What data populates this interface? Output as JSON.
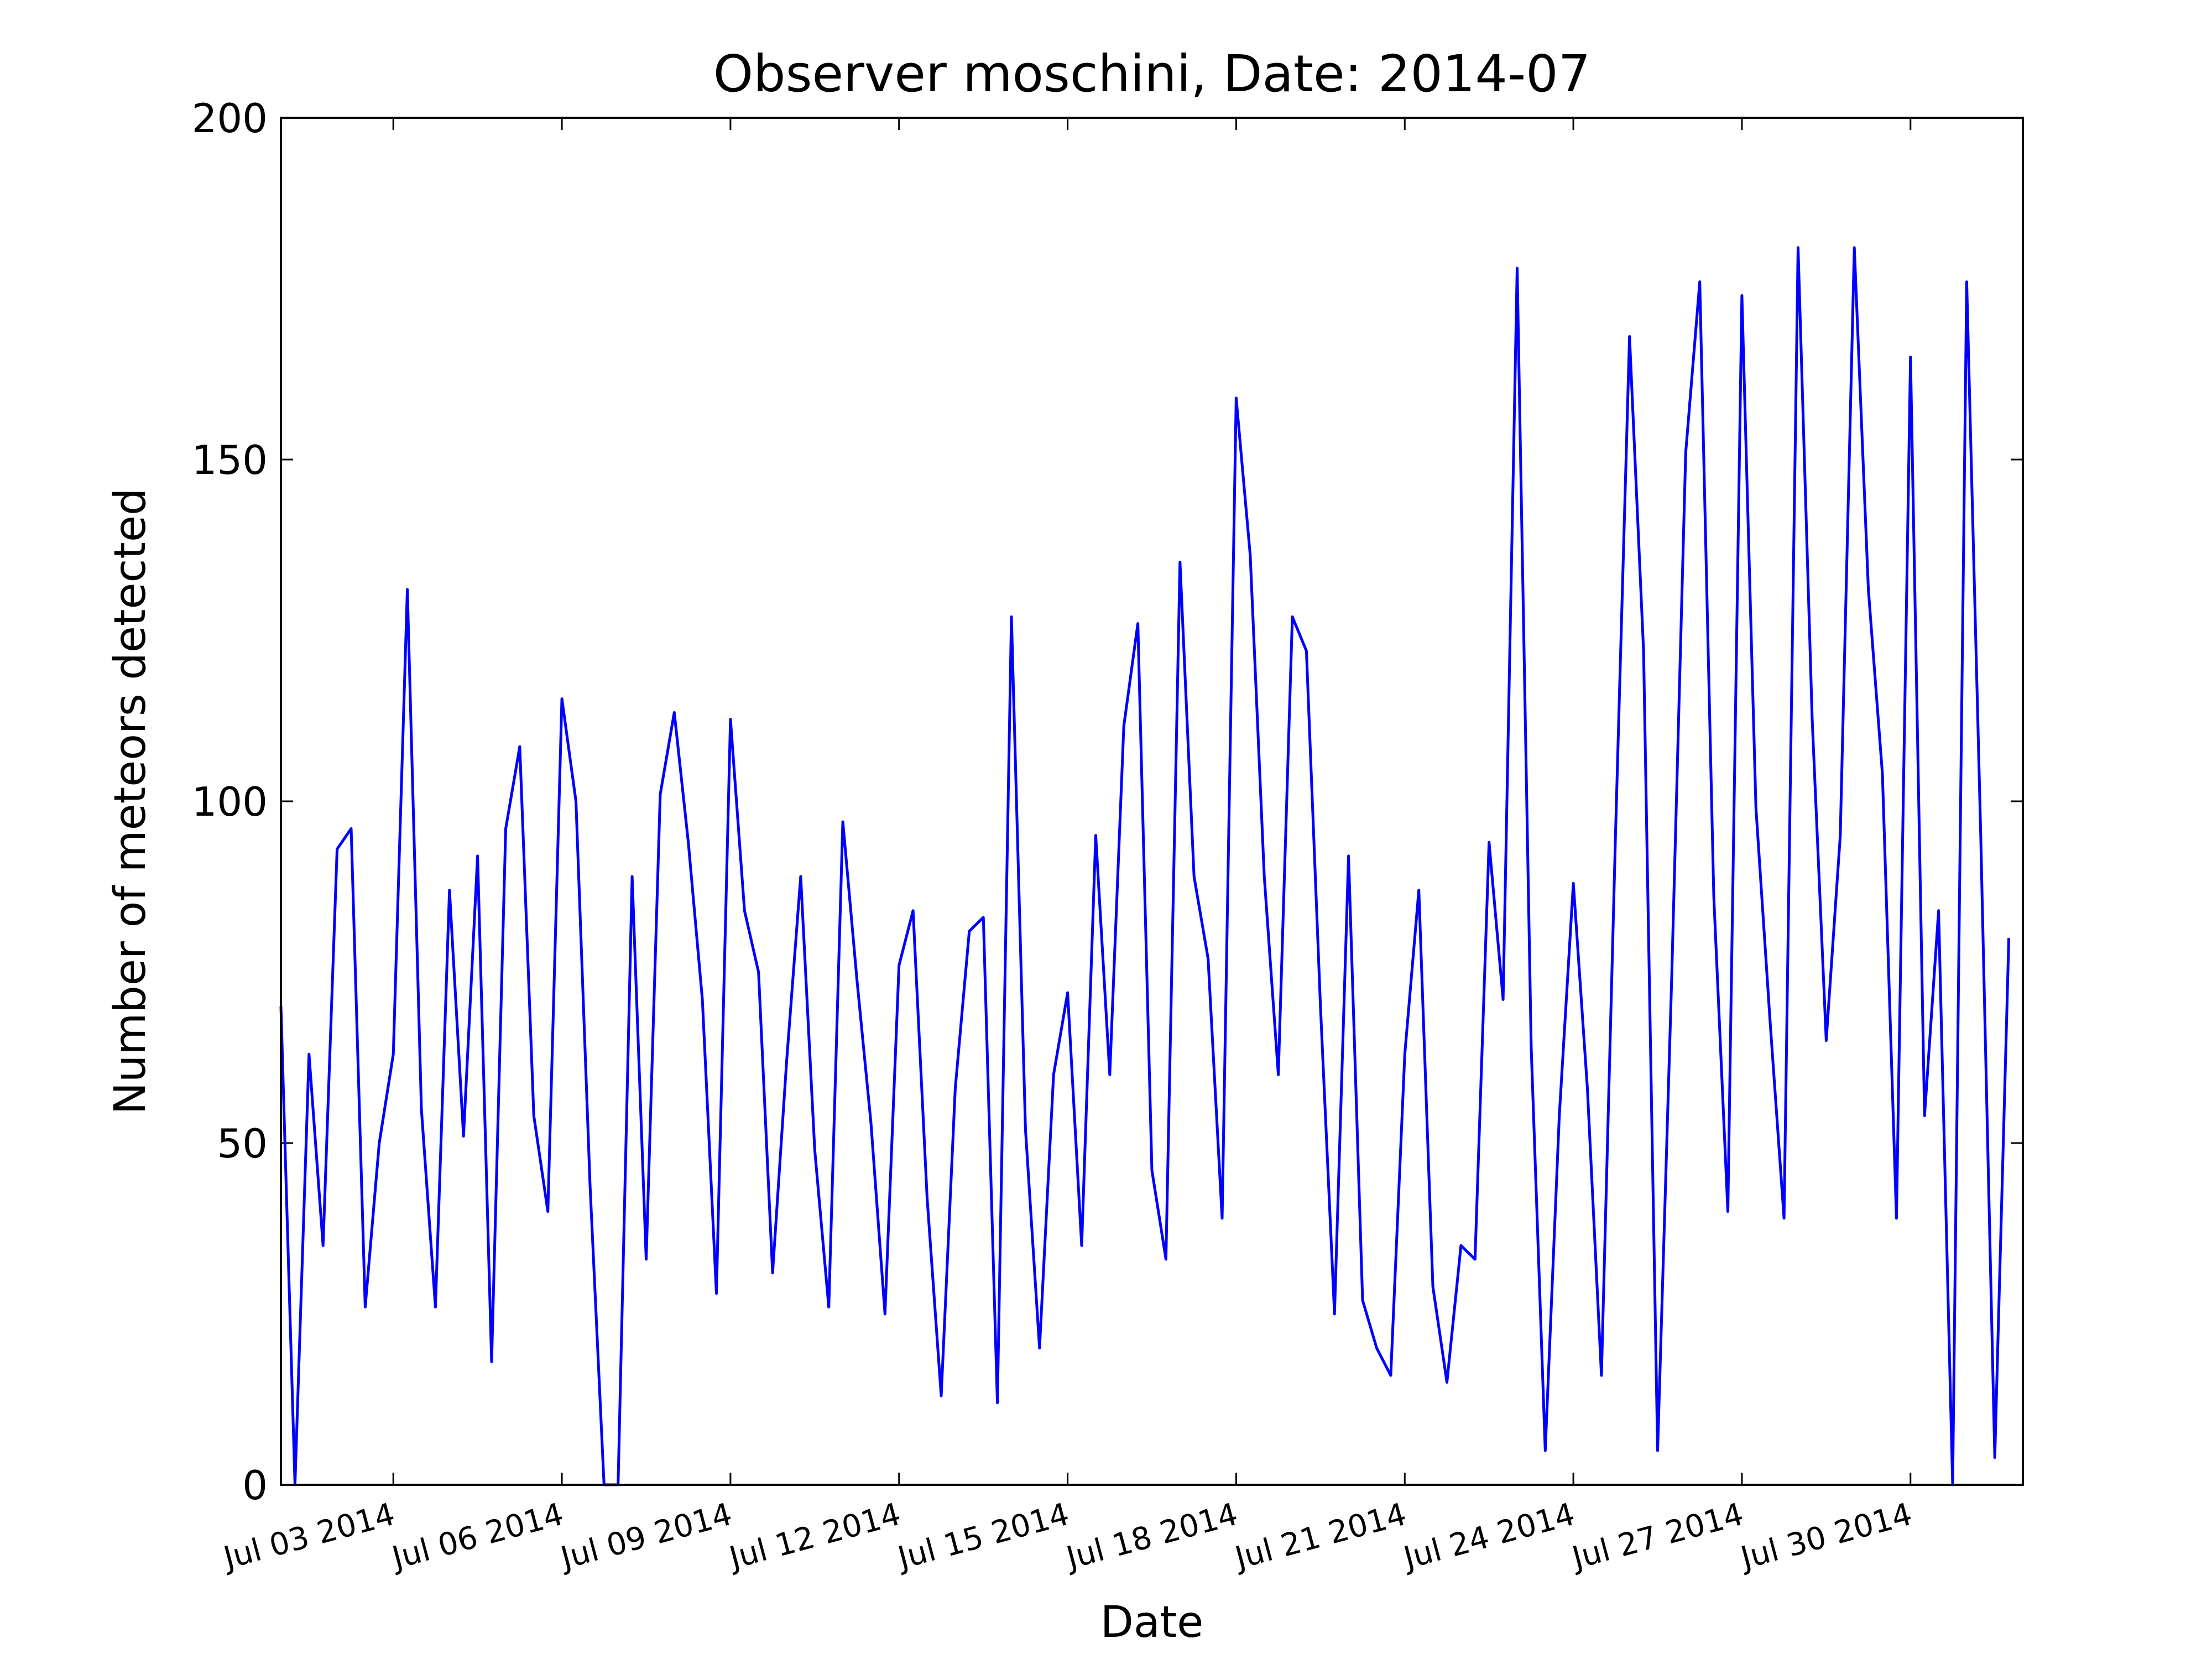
{
  "chart_data": {
    "type": "line",
    "title": "Observer moschini, Date: 2014-07",
    "x_label": "Date",
    "y_label": "Number of meteors detected",
    "color": "#0000ff",
    "x": [
      "2014-07-01 00:00",
      "2014-07-01 06:00",
      "2014-07-01 12:00",
      "2014-07-01 18:00",
      "2014-07-02 00:00",
      "2014-07-02 06:00",
      "2014-07-02 12:00",
      "2014-07-02 18:00",
      "2014-07-03 00:00",
      "2014-07-03 06:00",
      "2014-07-03 12:00",
      "2014-07-03 18:00",
      "2014-07-04 00:00",
      "2014-07-04 06:00",
      "2014-07-04 12:00",
      "2014-07-04 18:00",
      "2014-07-05 00:00",
      "2014-07-05 06:00",
      "2014-07-05 12:00",
      "2014-07-05 18:00",
      "2014-07-06 00:00",
      "2014-07-06 06:00",
      "2014-07-06 12:00",
      "2014-07-06 18:00",
      "2014-07-07 00:00",
      "2014-07-07 06:00",
      "2014-07-07 12:00",
      "2014-07-07 18:00",
      "2014-07-08 00:00",
      "2014-07-08 06:00",
      "2014-07-08 12:00",
      "2014-07-08 18:00",
      "2014-07-09 00:00",
      "2014-07-09 06:00",
      "2014-07-09 12:00",
      "2014-07-09 18:00",
      "2014-07-10 00:00",
      "2014-07-10 06:00",
      "2014-07-10 12:00",
      "2014-07-10 18:00",
      "2014-07-11 00:00",
      "2014-07-11 06:00",
      "2014-07-11 12:00",
      "2014-07-11 18:00",
      "2014-07-12 00:00",
      "2014-07-12 06:00",
      "2014-07-12 12:00",
      "2014-07-12 18:00",
      "2014-07-13 00:00",
      "2014-07-13 06:00",
      "2014-07-13 12:00",
      "2014-07-13 18:00",
      "2014-07-14 00:00",
      "2014-07-14 06:00",
      "2014-07-14 12:00",
      "2014-07-14 18:00",
      "2014-07-15 00:00",
      "2014-07-15 06:00",
      "2014-07-15 12:00",
      "2014-07-15 18:00",
      "2014-07-16 00:00",
      "2014-07-16 06:00",
      "2014-07-16 12:00",
      "2014-07-16 18:00",
      "2014-07-17 00:00",
      "2014-07-17 06:00",
      "2014-07-17 12:00",
      "2014-07-17 18:00",
      "2014-07-18 00:00",
      "2014-07-18 06:00",
      "2014-07-18 12:00",
      "2014-07-18 18:00",
      "2014-07-19 00:00",
      "2014-07-19 06:00",
      "2014-07-19 12:00",
      "2014-07-19 18:00",
      "2014-07-20 00:00",
      "2014-07-20 06:00",
      "2014-07-20 12:00",
      "2014-07-20 18:00",
      "2014-07-21 00:00",
      "2014-07-21 06:00",
      "2014-07-21 12:00",
      "2014-07-21 18:00",
      "2014-07-22 00:00",
      "2014-07-22 06:00",
      "2014-07-22 12:00",
      "2014-07-22 18:00",
      "2014-07-23 00:00",
      "2014-07-23 06:00",
      "2014-07-23 12:00",
      "2014-07-23 18:00",
      "2014-07-24 00:00",
      "2014-07-24 06:00",
      "2014-07-24 12:00",
      "2014-07-24 18:00",
      "2014-07-25 00:00",
      "2014-07-25 06:00",
      "2014-07-25 12:00",
      "2014-07-25 18:00",
      "2014-07-26 00:00",
      "2014-07-26 06:00",
      "2014-07-26 12:00",
      "2014-07-26 18:00",
      "2014-07-27 00:00",
      "2014-07-27 06:00",
      "2014-07-27 12:00",
      "2014-07-27 18:00",
      "2014-07-28 00:00",
      "2014-07-28 06:00",
      "2014-07-28 12:00",
      "2014-07-28 18:00",
      "2014-07-29 00:00",
      "2014-07-29 06:00",
      "2014-07-29 12:00",
      "2014-07-29 18:00",
      "2014-07-30 00:00",
      "2014-07-30 06:00",
      "2014-07-30 12:00",
      "2014-07-30 18:00",
      "2014-07-31 00:00",
      "2014-07-31 06:00",
      "2014-07-31 12:00",
      "2014-07-31 18:00"
    ],
    "values": [
      70,
      0,
      63,
      35,
      93,
      96,
      26,
      50,
      63,
      131,
      55,
      26,
      87,
      51,
      92,
      18,
      96,
      108,
      54,
      40,
      115,
      100,
      44,
      0,
      0,
      89,
      33,
      101,
      113,
      94,
      71,
      28,
      112,
      84,
      75,
      31,
      62,
      89,
      49,
      26,
      97,
      74,
      53,
      25,
      76,
      84,
      42,
      13,
      58,
      81,
      83,
      12,
      127,
      52,
      20,
      60,
      72,
      35,
      95,
      60,
      111,
      126,
      46,
      33,
      135,
      89,
      77,
      39,
      159,
      136,
      89,
      60,
      127,
      122,
      70,
      25,
      92,
      27,
      20,
      16,
      63,
      87,
      29,
      15,
      35,
      33,
      94,
      71,
      178,
      64,
      5,
      54,
      88,
      58,
      16,
      95,
      168,
      122,
      5,
      74,
      151,
      176,
      86,
      40,
      174,
      99,
      68,
      39,
      181,
      112,
      65,
      95,
      181,
      131,
      104,
      39,
      165,
      54,
      84,
      0,
      176,
      95,
      4,
      80
    ],
    "xlim": [
      "2014-07-01 00:00",
      "2014-08-01 00:00"
    ],
    "xticks": [
      {
        "value": "2014-07-03 00:00",
        "label": "Jul 03 2014"
      },
      {
        "value": "2014-07-06 00:00",
        "label": "Jul 06 2014"
      },
      {
        "value": "2014-07-09 00:00",
        "label": "Jul 09 2014"
      },
      {
        "value": "2014-07-12 00:00",
        "label": "Jul 12 2014"
      },
      {
        "value": "2014-07-15 00:00",
        "label": "Jul 15 2014"
      },
      {
        "value": "2014-07-18 00:00",
        "label": "Jul 18 2014"
      },
      {
        "value": "2014-07-21 00:00",
        "label": "Jul 21 2014"
      },
      {
        "value": "2014-07-24 00:00",
        "label": "Jul 24 2014"
      },
      {
        "value": "2014-07-27 00:00",
        "label": "Jul 27 2014"
      },
      {
        "value": "2014-07-30 00:00",
        "label": "Jul 30 2014"
      }
    ],
    "ylim": [
      0,
      200
    ],
    "yticks": [
      0,
      50,
      100,
      150,
      200
    ],
    "grid": false
  }
}
